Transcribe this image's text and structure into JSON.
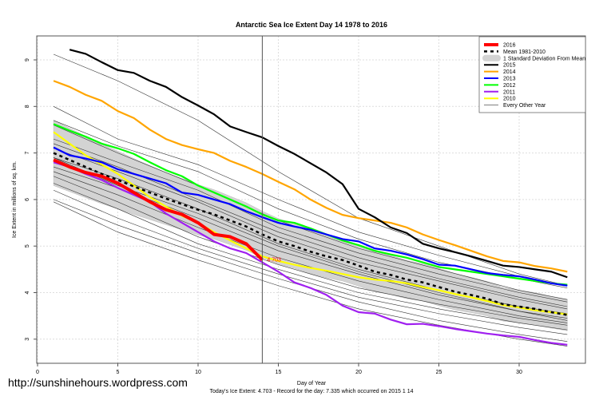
{
  "chart_data": {
    "type": "line",
    "title": "Antarctic Sea Ice Extent Day 14 1978 to 2016",
    "xlabel": "Day of Year",
    "ylabel": "Ice Extent in millions of sq. km.",
    "subtitle": "Today's Ice Extent: 4.703  - Record for the day: 7.335 which occurred on 2015 1 14",
    "xlim": [
      0,
      34
    ],
    "ylim": [
      2.7,
      9.5
    ],
    "xticks": [
      "0",
      "5",
      "10",
      "15",
      "20",
      "25",
      "30"
    ],
    "yticks": [
      "3",
      "4",
      "5",
      "6",
      "7",
      "8",
      "9"
    ],
    "grid": true,
    "legend_position": "top-right",
    "current_day": 14,
    "annotation": "4.703",
    "legend": [
      "2016",
      "Mean 1981-2010",
      "1 Standard Deviation From Mean",
      "2015",
      "2014",
      "2013",
      "2012",
      "2011",
      "2010",
      "Every Other Year"
    ],
    "series": [
      {
        "name": "2016",
        "color": "#ff0000",
        "x_start": 1,
        "values": [
          6.85,
          6.7,
          6.58,
          6.5,
          6.35,
          6.15,
          5.95,
          5.78,
          5.68,
          5.5,
          5.25,
          5.2,
          5.05,
          4.703
        ]
      },
      {
        "name": "Mean 1981-2010",
        "color": "#000000",
        "x_start": 1,
        "values": [
          7.0,
          6.85,
          6.7,
          6.55,
          6.42,
          6.28,
          6.15,
          6.02,
          5.9,
          5.78,
          5.68,
          5.55,
          5.42,
          5.25,
          5.1,
          5.0,
          4.88,
          4.78,
          4.7,
          4.58,
          4.45,
          4.38,
          4.28,
          4.22,
          4.12,
          4.02,
          3.95,
          3.87,
          3.75,
          3.7,
          3.65,
          3.58,
          3.52
        ]
      },
      {
        "name": "2015",
        "color": "#000000",
        "x_start": 2,
        "values": [
          9.22,
          9.13,
          8.95,
          8.78,
          8.72,
          8.55,
          8.42,
          8.2,
          8.02,
          7.83,
          7.57,
          7.45,
          7.335,
          7.15,
          6.98,
          6.78,
          6.58,
          6.33,
          5.8,
          5.62,
          5.4,
          5.28,
          5.05,
          4.95,
          4.87,
          4.78,
          4.68,
          4.58,
          4.55,
          4.5,
          4.45,
          4.33
        ]
      },
      {
        "name": "2014",
        "color": "#ffa500",
        "x_start": 1,
        "values": [
          8.55,
          8.42,
          8.25,
          8.12,
          7.9,
          7.75,
          7.5,
          7.3,
          7.17,
          7.08,
          7.0,
          6.83,
          6.7,
          6.55,
          6.38,
          6.22,
          6.0,
          5.82,
          5.67,
          5.6,
          5.55,
          5.5,
          5.4,
          5.25,
          5.13,
          5.02,
          4.9,
          4.78,
          4.68,
          4.65,
          4.57,
          4.52,
          4.45
        ]
      },
      {
        "name": "2013",
        "color": "#0000ff",
        "x_start": 1,
        "values": [
          7.12,
          6.95,
          6.88,
          6.8,
          6.65,
          6.55,
          6.45,
          6.35,
          6.15,
          6.1,
          6.0,
          5.9,
          5.75,
          5.62,
          5.5,
          5.42,
          5.35,
          5.25,
          5.15,
          5.1,
          4.95,
          4.9,
          4.82,
          4.72,
          4.6,
          4.58,
          4.5,
          4.42,
          4.38,
          4.35,
          4.28,
          4.2,
          4.15
        ]
      },
      {
        "name": "2012",
        "color": "#00ff00",
        "x_start": 1,
        "values": [
          7.62,
          7.48,
          7.35,
          7.2,
          7.1,
          6.98,
          6.8,
          6.63,
          6.5,
          6.3,
          6.15,
          6.0,
          5.85,
          5.68,
          5.55,
          5.5,
          5.38,
          5.25,
          5.12,
          5.02,
          4.9,
          4.82,
          4.75,
          4.65,
          4.55,
          4.5,
          4.45,
          4.4,
          4.35,
          4.3,
          4.25,
          4.2,
          4.17
        ]
      },
      {
        "name": "2011",
        "color": "#a020f0",
        "x_start": 1,
        "values": [
          6.8,
          6.7,
          6.55,
          6.42,
          6.25,
          6.1,
          5.95,
          5.7,
          5.5,
          5.3,
          5.1,
          4.95,
          4.85,
          4.65,
          4.45,
          4.22,
          4.1,
          3.95,
          3.72,
          3.58,
          3.55,
          3.42,
          3.32,
          3.33,
          3.28,
          3.22,
          3.17,
          3.12,
          3.08,
          3.05,
          2.98,
          2.92,
          2.88
        ]
      },
      {
        "name": "2010",
        "color": "#ffff00",
        "x_start": 1,
        "values": [
          7.45,
          7.2,
          6.95,
          6.75,
          6.55,
          6.3,
          6.05,
          5.85,
          5.65,
          5.5,
          5.3,
          5.12,
          4.95,
          4.78,
          4.68,
          4.6,
          4.53,
          4.47,
          4.4,
          4.33,
          4.28,
          4.25,
          4.2,
          4.12,
          4.05,
          3.97,
          3.9,
          3.82,
          3.73,
          3.68,
          3.62,
          3.58,
          3.53
        ]
      }
    ],
    "std_dev": [
      0.7,
      0.68,
      0.66,
      0.64,
      0.62,
      0.6,
      0.58,
      0.56,
      0.55,
      0.54,
      0.53,
      0.52,
      0.51,
      0.5,
      0.49,
      0.48,
      0.47,
      0.46,
      0.45,
      0.44,
      0.43,
      0.42,
      0.41,
      0.4,
      0.4,
      0.39,
      0.38,
      0.37,
      0.36,
      0.35,
      0.35,
      0.34,
      0.34
    ],
    "other_years": {
      "days": [
        1,
        5,
        10,
        15,
        20,
        25,
        30,
        33
      ],
      "lines": [
        [
          9.12,
          8.55,
          7.7,
          6.6,
          5.6,
          5.0,
          4.4,
          4.15
        ],
        [
          8.0,
          7.3,
          6.75,
          6.0,
          5.3,
          4.8,
          4.35,
          4.15
        ],
        [
          7.7,
          7.15,
          6.6,
          5.8,
          5.15,
          4.65,
          4.3,
          4.1
        ],
        [
          7.6,
          7.0,
          6.3,
          5.55,
          4.95,
          4.5,
          4.05,
          3.85
        ],
        [
          7.3,
          6.8,
          6.2,
          5.4,
          4.85,
          4.4,
          4.0,
          3.8
        ],
        [
          7.1,
          6.6,
          5.95,
          5.2,
          4.65,
          4.25,
          3.85,
          3.65
        ],
        [
          6.9,
          6.45,
          5.8,
          5.05,
          4.5,
          4.05,
          3.7,
          3.55
        ],
        [
          6.7,
          6.25,
          5.6,
          4.9,
          4.4,
          3.95,
          3.6,
          3.45
        ],
        [
          6.6,
          6.1,
          5.4,
          4.75,
          4.25,
          3.85,
          3.5,
          3.35
        ],
        [
          6.5,
          5.95,
          5.2,
          4.6,
          4.1,
          3.75,
          3.45,
          3.3
        ],
        [
          6.35,
          5.8,
          5.05,
          4.5,
          4.0,
          3.65,
          3.35,
          3.2
        ],
        [
          6.2,
          5.6,
          4.95,
          4.4,
          3.9,
          3.55,
          3.25,
          3.1
        ],
        [
          6.0,
          5.45,
          4.85,
          4.3,
          3.8,
          3.4,
          3.1,
          2.95
        ],
        [
          5.95,
          5.3,
          4.7,
          4.15,
          3.65,
          3.3,
          3.0,
          2.85
        ],
        [
          6.9,
          6.3,
          5.7,
          5.0,
          4.45,
          4.0,
          3.6,
          3.4
        ],
        [
          7.2,
          6.7,
          6.0,
          5.3,
          4.75,
          4.3,
          3.9,
          3.7
        ]
      ]
    }
  },
  "watermark": "http://sunshinehours.wordpress.com"
}
